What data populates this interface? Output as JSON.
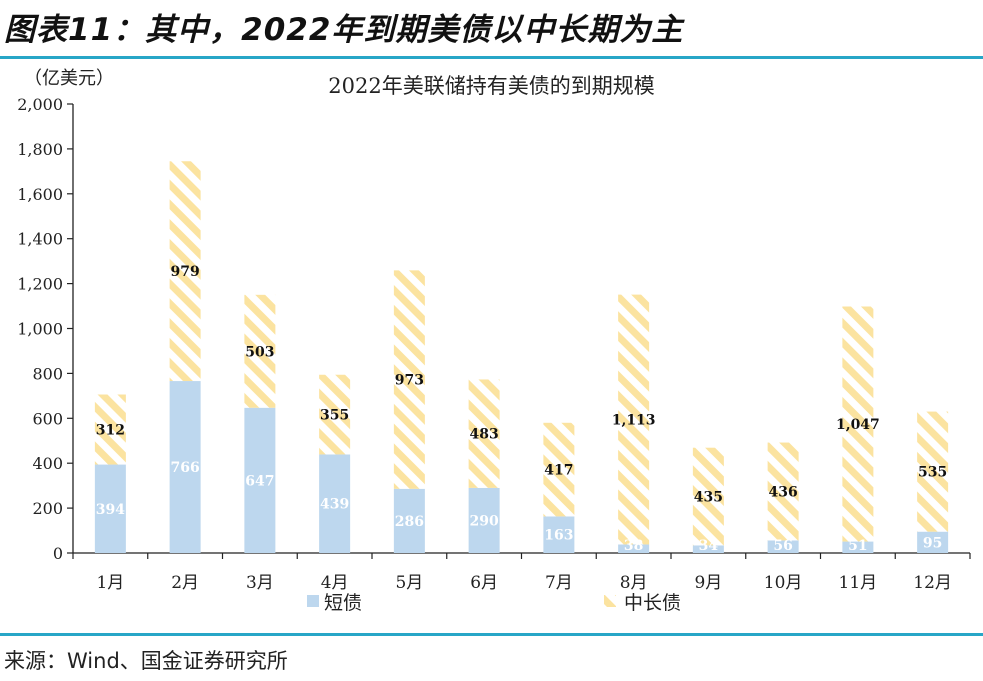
{
  "header": {
    "figure_title": "图表11：其中，2022年到期美债以中长期为主"
  },
  "footer": {
    "source": "来源：Wind、国金证券研究所"
  },
  "chart_data": {
    "type": "bar",
    "stacked": true,
    "title": "2022年美联储持有美债的到期规模",
    "ylabel": "（亿美元）",
    "xlabel": "",
    "ylim": [
      0,
      2000
    ],
    "yticks": [
      0,
      200,
      400,
      600,
      800,
      1000,
      1200,
      1400,
      1600,
      1800,
      2000
    ],
    "ytick_labels": [
      "0",
      "200",
      "400",
      "600",
      "800",
      "1,000",
      "1,200",
      "1,400",
      "1,600",
      "1,800",
      "2,000"
    ],
    "categories": [
      "1月",
      "2月",
      "3月",
      "4月",
      "5月",
      "6月",
      "7月",
      "8月",
      "9月",
      "10月",
      "11月",
      "12月"
    ],
    "series": [
      {
        "name": "短债",
        "color": "#bdd7ee",
        "values": [
          394,
          766,
          647,
          439,
          286,
          290,
          163,
          38,
          34,
          56,
          51,
          95
        ],
        "labels": [
          "394",
          "766",
          "647",
          "439",
          "286",
          "290",
          "163",
          "38",
          "34",
          "56",
          "51",
          "95"
        ]
      },
      {
        "name": "中长债",
        "color": "#fbe5a6",
        "pattern": "diagonal-stripes",
        "values": [
          312,
          979,
          503,
          355,
          973,
          483,
          417,
          1113,
          435,
          436,
          1047,
          535
        ],
        "labels": [
          "312",
          "979",
          "503",
          "355",
          "973",
          "483",
          "417",
          "1,113",
          "435",
          "436",
          "1,047",
          "535"
        ]
      }
    ],
    "grid": false,
    "legend_position": "bottom"
  }
}
